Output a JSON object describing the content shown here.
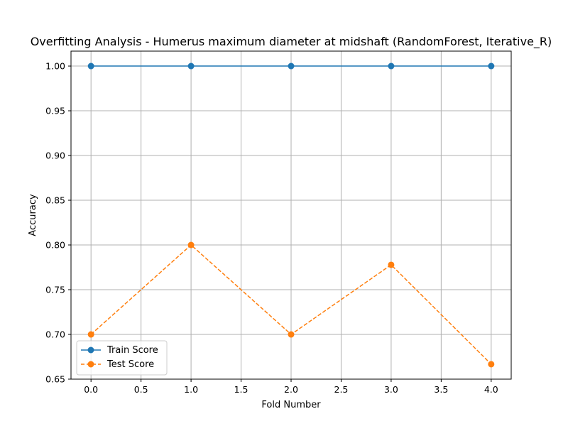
{
  "chart_data": {
    "type": "line",
    "title": "Overfitting Analysis - Humerus maximum diameter at midshaft (RandomForest, Iterative_R)",
    "xlabel": "Fold Number",
    "ylabel": "Accuracy",
    "xlim": [
      -0.2,
      4.2
    ],
    "ylim": [
      0.65,
      1.0167
    ],
    "x": [
      0,
      1,
      2,
      3,
      4
    ],
    "xticks": [
      0.0,
      0.5,
      1.0,
      1.5,
      2.0,
      2.5,
      3.0,
      3.5,
      4.0
    ],
    "xtick_labels": [
      "0.0",
      "0.5",
      "1.0",
      "1.5",
      "2.0",
      "2.5",
      "3.0",
      "3.5",
      "4.0"
    ],
    "yticks": [
      0.65,
      0.7,
      0.75,
      0.8,
      0.85,
      0.9,
      0.95,
      1.0
    ],
    "ytick_labels": [
      "0.65",
      "0.70",
      "0.75",
      "0.80",
      "0.85",
      "0.90",
      "0.95",
      "1.00"
    ],
    "grid": true,
    "legend_position": "lower-left",
    "series": [
      {
        "name": "Train Score",
        "values": [
          1.0,
          1.0,
          1.0,
          1.0,
          1.0
        ],
        "color": "#1f77b4",
        "linestyle": "solid",
        "marker": "circle"
      },
      {
        "name": "Test Score",
        "values": [
          0.7,
          0.8,
          0.7,
          0.7778,
          0.6667
        ],
        "color": "#ff7f0e",
        "linestyle": "dashed",
        "marker": "circle"
      }
    ]
  }
}
